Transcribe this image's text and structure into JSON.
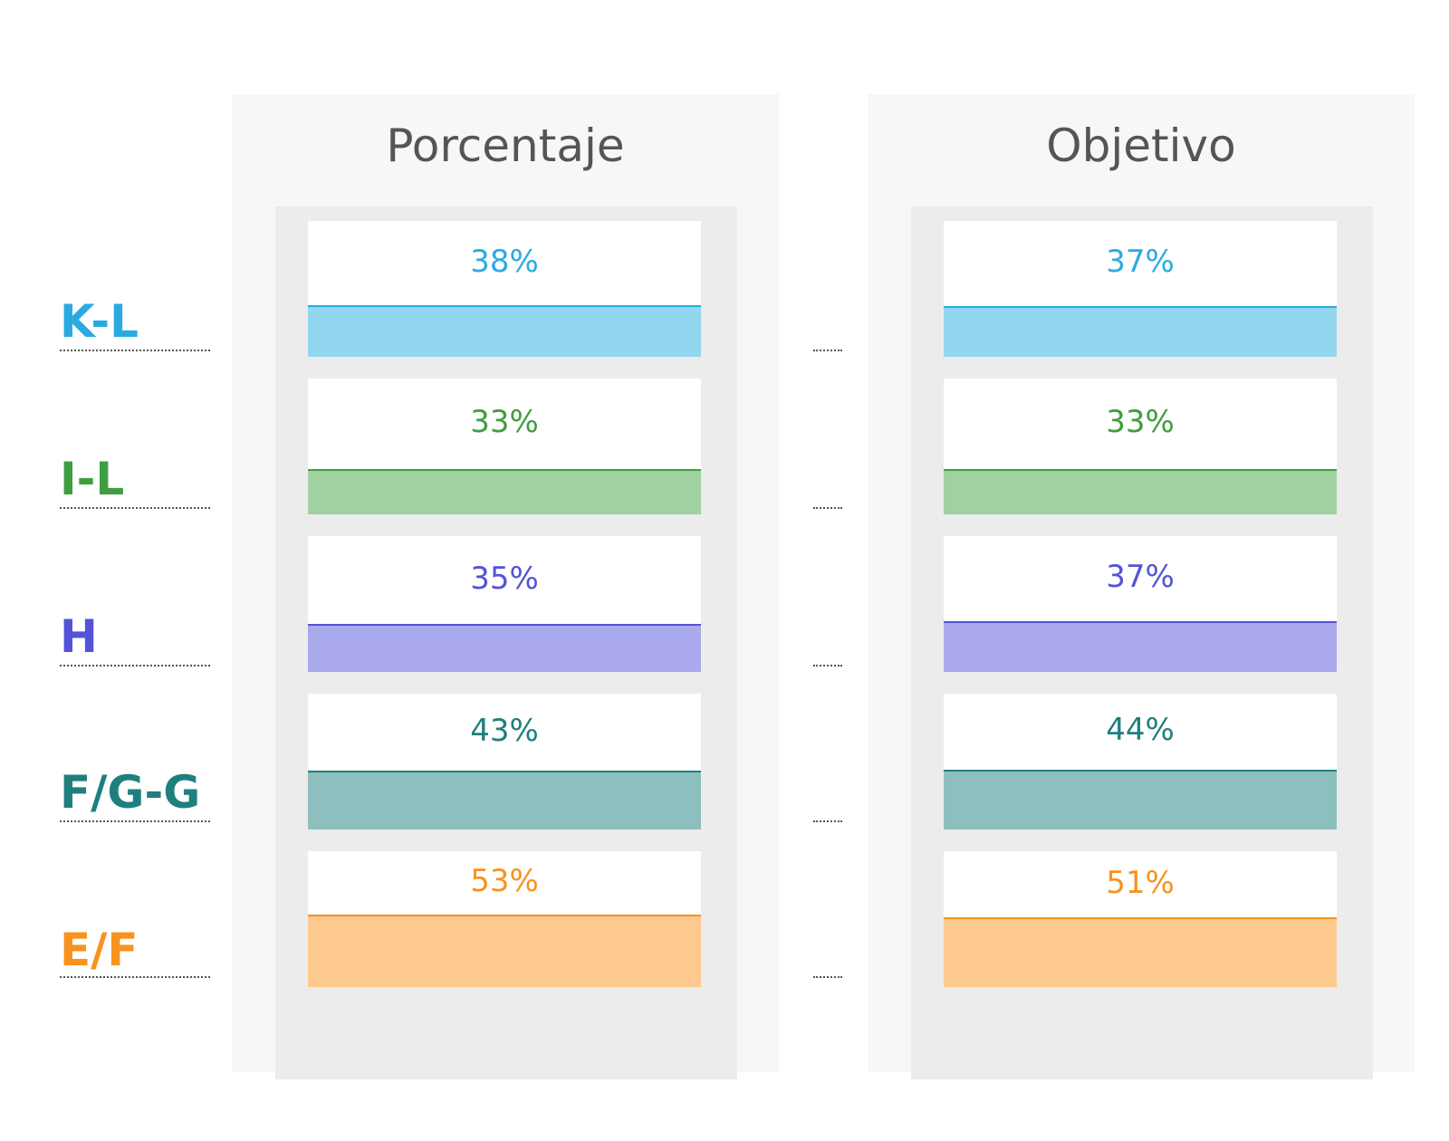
{
  "chart_data": {
    "type": "bar",
    "panels": [
      {
        "title": "Porcentaje",
        "labels": [
          "38%",
          "33%",
          "35%",
          "43%",
          "53%"
        ],
        "values": [
          38,
          33,
          35,
          43,
          53
        ]
      },
      {
        "title": "Objetivo",
        "labels": [
          "37%",
          "33%",
          "37%",
          "44%",
          "51%"
        ],
        "values": [
          37,
          33,
          37,
          44,
          51
        ]
      }
    ],
    "categories": [
      "K-L",
      "I-L",
      "H",
      "F/G-G",
      "E/F"
    ],
    "colors": {
      "text": [
        "#29abe2",
        "#3f9e3f",
        "#5353d8",
        "#1f7f7f",
        "#f7931e"
      ],
      "fill": [
        "#92d6ef",
        "#a1d0a1",
        "#a9a9eb",
        "#8ebfbf",
        "#fec98f"
      ],
      "line": [
        "#29abe2",
        "#3f9e3f",
        "#5353d8",
        "#1f7f7f",
        "#f7931e"
      ]
    }
  }
}
